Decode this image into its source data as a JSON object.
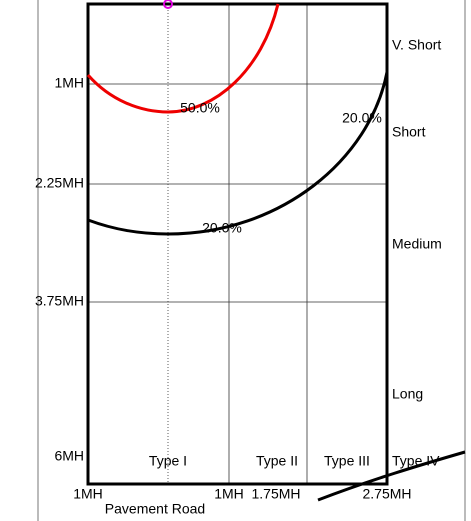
{
  "left_labels": [
    "1MH",
    "2.25MH",
    "3.75MH",
    "6MH"
  ],
  "bottom_labels": [
    "1MH",
    "1MH",
    "1.75MH",
    "2.75MH"
  ],
  "x_axis_title": "Pavement Road",
  "right_labels": [
    "V. Short",
    "Short",
    "Medium",
    "Long",
    "Type IV"
  ],
  "type_labels": [
    "Type I",
    "Type II",
    "Type III"
  ],
  "curve_labels": [
    "50.0%",
    "20.0%",
    "20.0%"
  ]
}
